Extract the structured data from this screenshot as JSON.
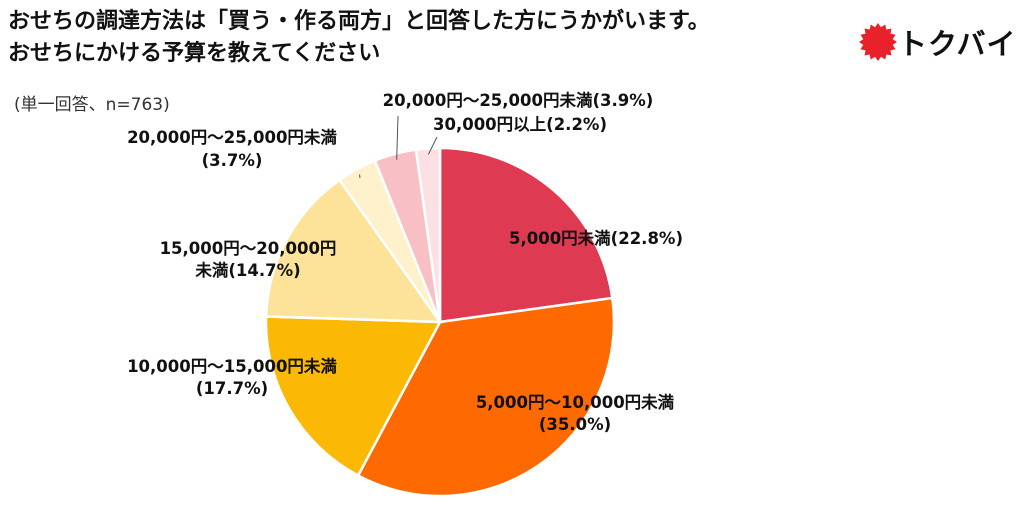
{
  "header": {
    "title_line1": "おせちの調達方法は「買う・作る両方」と回答した方にうかがいます。",
    "title_line2": "おせちにかける予算を教えてください",
    "subtitle": "(単一回答、n=763)"
  },
  "brand": {
    "logo_text": "トクバイ",
    "logo_color": "#e8212a",
    "logo_icon": "starburst-icon"
  },
  "chart_data": {
    "type": "pie",
    "title": "おせちにかける予算を教えてください",
    "n": 763,
    "start": "12 o'clock",
    "direction": "clockwise",
    "slices": [
      {
        "category": "5,000円未満",
        "value": 22.8,
        "color": "#de3a52",
        "label_lines": [
          "5,000円未満(22.8%)"
        ]
      },
      {
        "category": "5,000円～10,000円未満",
        "value": 35.0,
        "color": "#ff6a00",
        "label_lines": [
          "5,000円～10,000円未満",
          "(35.0%)"
        ]
      },
      {
        "category": "10,000円～15,000円未満",
        "value": 17.7,
        "color": "#fbb905",
        "label_lines": [
          "10,000円～15,000円未満",
          "(17.7%)"
        ]
      },
      {
        "category": "15,000円～20,000円未満",
        "value": 14.7,
        "color": "#fde39a",
        "label_lines": [
          "15,000円～20,000円",
          "未満(14.7%)"
        ]
      },
      {
        "category": "20,000円～25,000円未満",
        "value": 3.7,
        "color": "#fff1cc",
        "label_lines": [
          "20,000円～25,000円未満",
          "(3.7%)"
        ]
      },
      {
        "category": "20,000円～25,000円未満",
        "value": 3.9,
        "color": "#f8c0c4",
        "label_lines": [
          "20,000円～25,000円未満(3.9%)"
        ]
      },
      {
        "category": "30,000円以上",
        "value": 2.2,
        "color": "#fde0e3",
        "label_lines": [
          "30,000円以上(2.2%)"
        ]
      }
    ]
  }
}
